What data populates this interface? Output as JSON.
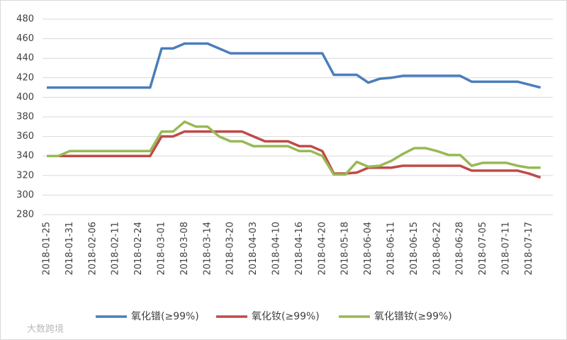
{
  "chart_data": {
    "type": "line",
    "categories": [
      "2018-01-25",
      null,
      "2018-01-31",
      null,
      "2018-02-06",
      null,
      "2018-02-11",
      null,
      "2018-02-24",
      null,
      "2018-03-01",
      null,
      "2018-03-08",
      null,
      "2018-03-14",
      null,
      "2018-03-20",
      null,
      "2018-04-03",
      null,
      "2018-04-10",
      null,
      "2018-04-16",
      null,
      "2018-04-20",
      null,
      "2018-05-18",
      null,
      "2018-06-04",
      null,
      "2018-06-11",
      null,
      "2018-06-15",
      null,
      "2018-06-22",
      null,
      "2018-06-28",
      null,
      "2018-07-05",
      null,
      "2018-07-11",
      null,
      "2018-07-17",
      null
    ],
    "series": [
      {
        "name": "氧化镨(≥99%)",
        "color": "#4a7ebb",
        "values": [
          410,
          410,
          410,
          410,
          410,
          410,
          410,
          410,
          410,
          410,
          450,
          450,
          455,
          455,
          455,
          450,
          445,
          445,
          445,
          445,
          445,
          445,
          445,
          445,
          445,
          423,
          423,
          423,
          415,
          419,
          420,
          422,
          422,
          422,
          422,
          422,
          422,
          416,
          416,
          416,
          416,
          416,
          413,
          410
        ]
      },
      {
        "name": "氧化钕(≥99%)",
        "color": "#be4b48",
        "values": [
          340,
          340,
          340,
          340,
          340,
          340,
          340,
          340,
          340,
          340,
          360,
          360,
          365,
          365,
          365,
          365,
          365,
          365,
          360,
          355,
          355,
          355,
          350,
          350,
          345,
          322,
          322,
          323,
          328,
          328,
          328,
          330,
          330,
          330,
          330,
          330,
          330,
          325,
          325,
          325,
          325,
          325,
          322,
          318
        ]
      },
      {
        "name": "氧化镨钕(≥99%)",
        "color": "#98b954",
        "values": [
          340,
          340,
          345,
          345,
          345,
          345,
          345,
          345,
          345,
          345,
          365,
          365,
          375,
          370,
          370,
          360,
          355,
          355,
          350,
          350,
          350,
          350,
          345,
          345,
          340,
          321,
          321,
          334,
          329,
          330,
          335,
          342,
          348,
          348,
          345,
          341,
          341,
          330,
          333,
          333,
          333,
          330,
          328,
          328
        ]
      }
    ],
    "ylim": [
      280,
      480
    ],
    "yticks": [
      280,
      300,
      320,
      340,
      360,
      380,
      400,
      420,
      440,
      460,
      480
    ],
    "grid": true,
    "legend": "bottom",
    "watermark": "大数跨境"
  }
}
